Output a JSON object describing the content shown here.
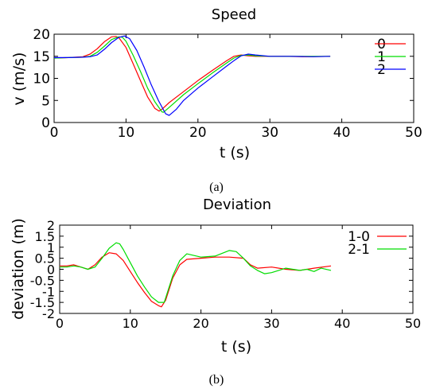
{
  "chart_data": [
    {
      "type": "line",
      "title": "Speed",
      "xlabel": "t (s)",
      "ylabel": "v (m/s)",
      "xlim": [
        0,
        50
      ],
      "ylim": [
        0,
        20
      ],
      "xticks": [
        "0",
        "10",
        "20",
        "30",
        "40",
        "50"
      ],
      "yticks": [
        "0",
        "5",
        "10",
        "15",
        "20"
      ],
      "legend_position": "top-right",
      "caption": "(a)",
      "series": [
        {
          "name": "0",
          "color": "#ff0000",
          "points": [
            [
              0,
              14.6
            ],
            [
              2,
              14.7
            ],
            [
              4,
              14.9
            ],
            [
              5,
              15.5
            ],
            [
              6,
              16.7
            ],
            [
              7,
              18.3
            ],
            [
              8,
              19.4
            ],
            [
              8.6,
              19.5
            ],
            [
              9,
              19.2
            ],
            [
              10,
              17.0
            ],
            [
              11,
              13.3
            ],
            [
              12,
              9.5
            ],
            [
              13,
              5.8
            ],
            [
              14,
              3.2
            ],
            [
              14.6,
              2.6
            ],
            [
              15,
              3.0
            ],
            [
              16,
              4.5
            ],
            [
              18,
              7.0
            ],
            [
              20,
              9.5
            ],
            [
              22,
              11.8
            ],
            [
              24,
              14.0
            ],
            [
              25,
              15.0
            ],
            [
              26,
              15.3
            ],
            [
              27,
              15.1
            ],
            [
              28,
              15.0
            ],
            [
              30,
              15.0
            ],
            [
              32,
              15.0
            ],
            [
              35,
              14.9
            ],
            [
              38.4,
              15.0
            ]
          ]
        },
        {
          "name": "1",
          "color": "#00dd00",
          "points": [
            [
              0,
              14.6
            ],
            [
              2,
              14.7
            ],
            [
              4,
              14.8
            ],
            [
              5,
              15.0
            ],
            [
              6,
              15.9
            ],
            [
              7,
              17.3
            ],
            [
              8,
              18.8
            ],
            [
              9,
              19.4
            ],
            [
              9.5,
              19.3
            ],
            [
              10,
              18.4
            ],
            [
              11,
              15.2
            ],
            [
              12,
              11.6
            ],
            [
              13,
              7.8
            ],
            [
              14,
              4.7
            ],
            [
              15,
              2.4
            ],
            [
              15.2,
              2.3
            ],
            [
              16,
              3.4
            ],
            [
              18,
              6.3
            ],
            [
              20,
              8.8
            ],
            [
              22,
              11.2
            ],
            [
              24,
              13.5
            ],
            [
              25,
              14.6
            ],
            [
              26,
              15.2
            ],
            [
              27,
              15.3
            ],
            [
              28,
              15.1
            ],
            [
              30,
              15.0
            ],
            [
              33,
              15.0
            ],
            [
              38.4,
              15.0
            ]
          ]
        },
        {
          "name": "2",
          "color": "#0000ff",
          "points": [
            [
              0,
              14.7
            ],
            [
              2,
              14.7
            ],
            [
              4,
              14.8
            ],
            [
              5,
              14.9
            ],
            [
              6,
              15.3
            ],
            [
              7,
              16.6
            ],
            [
              8,
              18.1
            ],
            [
              9,
              19.3
            ],
            [
              9.8,
              19.6
            ],
            [
              10.5,
              19.0
            ],
            [
              11.5,
              16.3
            ],
            [
              12.5,
              12.6
            ],
            [
              13.5,
              8.6
            ],
            [
              14.5,
              5.0
            ],
            [
              15.5,
              2.0
            ],
            [
              16,
              1.6
            ],
            [
              17,
              3.0
            ],
            [
              18,
              5.0
            ],
            [
              20,
              7.8
            ],
            [
              22,
              10.3
            ],
            [
              24,
              12.8
            ],
            [
              25,
              14.0
            ],
            [
              26,
              15.1
            ],
            [
              27,
              15.5
            ],
            [
              28,
              15.3
            ],
            [
              30,
              15.0
            ],
            [
              33,
              15.0
            ],
            [
              36,
              14.9
            ],
            [
              38.4,
              15.0
            ]
          ]
        }
      ]
    },
    {
      "type": "line",
      "title": "Deviation",
      "xlabel": "t (s)",
      "ylabel": "deviation (m)",
      "xlim": [
        0,
        50
      ],
      "ylim": [
        -2,
        2
      ],
      "xticks": [
        "0",
        "10",
        "20",
        "30",
        "40",
        "50"
      ],
      "yticks": [
        "-2",
        "-1.5",
        "-1",
        "-0.5",
        "0",
        "0.5",
        "1",
        "1.5",
        "2"
      ],
      "legend_position": "top-right",
      "caption": "(b)",
      "series": [
        {
          "name": "1-0",
          "color": "#ff0000",
          "points": [
            [
              0,
              0.15
            ],
            [
              1,
              0.15
            ],
            [
              2,
              0.2
            ],
            [
              3,
              0.1
            ],
            [
              4,
              0.0
            ],
            [
              5,
              0.2
            ],
            [
              6,
              0.55
            ],
            [
              7,
              0.75
            ],
            [
              8,
              0.7
            ],
            [
              9,
              0.4
            ],
            [
              10,
              -0.1
            ],
            [
              11,
              -0.6
            ],
            [
              12,
              -1.05
            ],
            [
              13,
              -1.45
            ],
            [
              14,
              -1.65
            ],
            [
              14.4,
              -1.7
            ],
            [
              15,
              -1.4
            ],
            [
              16,
              -0.4
            ],
            [
              17,
              0.2
            ],
            [
              18,
              0.45
            ],
            [
              20,
              0.5
            ],
            [
              22,
              0.55
            ],
            [
              24,
              0.55
            ],
            [
              26,
              0.5
            ],
            [
              27,
              0.2
            ],
            [
              28,
              0.05
            ],
            [
              30,
              0.1
            ],
            [
              32,
              0.0
            ],
            [
              34,
              -0.05
            ],
            [
              36,
              0.05
            ],
            [
              38.4,
              0.15
            ]
          ]
        },
        {
          "name": "2-1",
          "color": "#00dd00",
          "points": [
            [
              0,
              0.1
            ],
            [
              1,
              0.1
            ],
            [
              2,
              0.15
            ],
            [
              3,
              0.1
            ],
            [
              4,
              0.0
            ],
            [
              5,
              0.1
            ],
            [
              6,
              0.5
            ],
            [
              7,
              0.95
            ],
            [
              8,
              1.2
            ],
            [
              8.5,
              1.15
            ],
            [
              9,
              0.9
            ],
            [
              10,
              0.3
            ],
            [
              11,
              -0.3
            ],
            [
              12,
              -0.8
            ],
            [
              13,
              -1.25
            ],
            [
              14,
              -1.5
            ],
            [
              14.8,
              -1.5
            ],
            [
              15,
              -1.3
            ],
            [
              16,
              -0.3
            ],
            [
              17,
              0.4
            ],
            [
              18,
              0.7
            ],
            [
              20,
              0.55
            ],
            [
              22,
              0.6
            ],
            [
              24,
              0.85
            ],
            [
              25,
              0.8
            ],
            [
              26,
              0.5
            ],
            [
              27,
              0.15
            ],
            [
              28,
              -0.05
            ],
            [
              29,
              -0.2
            ],
            [
              30,
              -0.15
            ],
            [
              31,
              -0.05
            ],
            [
              32,
              0.05
            ],
            [
              34,
              -0.05
            ],
            [
              35,
              0.0
            ],
            [
              36,
              -0.1
            ],
            [
              37,
              0.05
            ],
            [
              38.4,
              -0.05
            ]
          ]
        }
      ]
    }
  ]
}
